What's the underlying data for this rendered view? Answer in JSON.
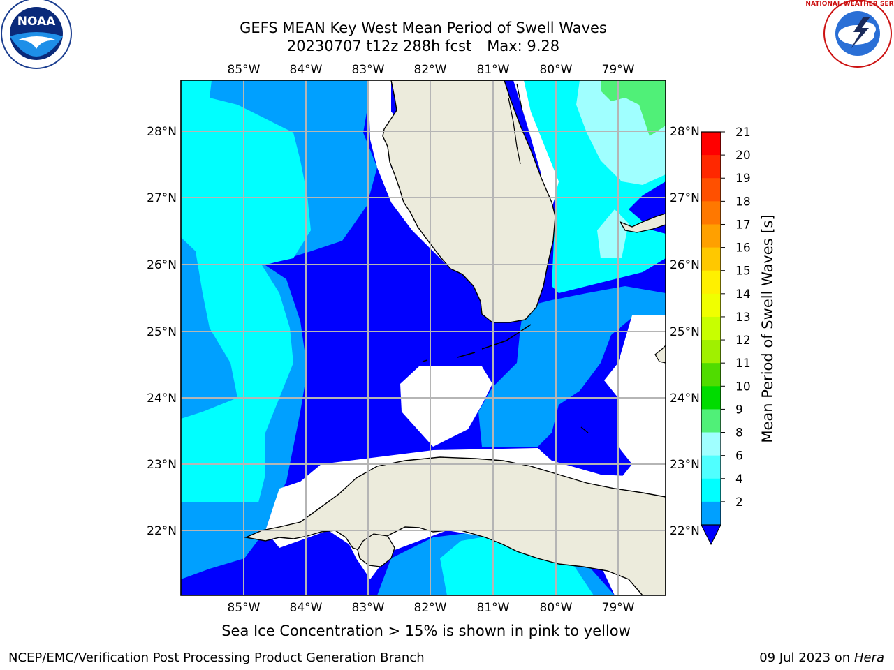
{
  "title": {
    "line1": "GEFS MEAN Key West Mean Period of Swell Waves",
    "run": "20230707 t12z 288h fcst",
    "max": "Max: 9.28"
  },
  "map": {
    "lon_labels": [
      "85°W",
      "84°W",
      "83°W",
      "82°W",
      "81°W",
      "80°W",
      "79°W"
    ],
    "lat_labels": [
      "28°N",
      "27°N",
      "26°N",
      "25°N",
      "24°N",
      "23°N",
      "22°N"
    ],
    "land_color": "#ecebdc",
    "gridline_color": "#b5b5b5"
  },
  "colorbar": {
    "label": "Mean Period of Swell Waves [s]",
    "ticks": [
      "21",
      "20",
      "19",
      "18",
      "17",
      "16",
      "15",
      "14",
      "13",
      "12",
      "11",
      "10",
      "9",
      "8",
      "6",
      "4",
      "2"
    ],
    "colors": [
      "#ff0000",
      "#ff2800",
      "#ff5000",
      "#ff7800",
      "#ffa000",
      "#ffc800",
      "#fff000",
      "#f0ff00",
      "#c8ff00",
      "#a0f000",
      "#50dc00",
      "#00dc00",
      "#50f078",
      "#a0ffff",
      "#50ffff",
      "#00ffff",
      "#00a0ff"
    ],
    "extend_color": "#0000ff"
  },
  "caption": "Sea Ice Concentration > 15% is shown in pink to yellow",
  "footer": {
    "left": "NCEP/EMC/Verification Post Processing Product Generation Branch",
    "date": "09 Jul 2023 on ",
    "machine": "Hera"
  },
  "logos": {
    "noaa": "NOAA",
    "nws": "NATIONAL WEATHER SERVICE"
  }
}
